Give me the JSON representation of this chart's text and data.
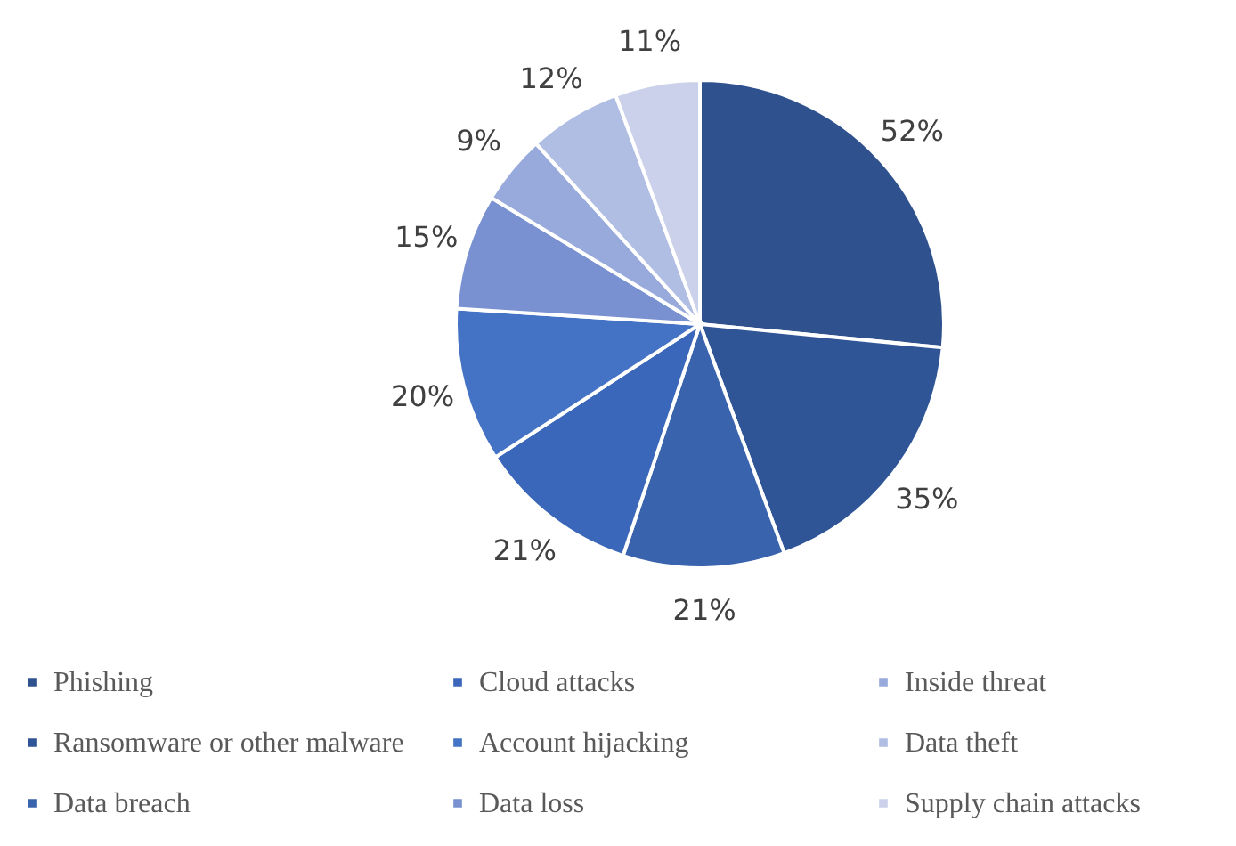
{
  "chart_data": {
    "type": "pie",
    "categories": [
      "Phishing",
      "Ransomware or other malware",
      "Data breach",
      "Cloud attacks",
      "Account hijacking",
      "Data loss",
      "Inside threat",
      "Data theft",
      "Supply chain attacks"
    ],
    "values": [
      52,
      35,
      21,
      21,
      20,
      15,
      9,
      12,
      11
    ],
    "value_labels": [
      "52%",
      "35%",
      "21%",
      "21%",
      "20%",
      "15%",
      "9%",
      "12%",
      "11%"
    ],
    "colors": [
      "#2f528f",
      "#2f5597",
      "#3a63ad",
      "#3a67ba",
      "#4472c4",
      "#7a91d1",
      "#98aadc",
      "#b1bee3",
      "#cbd1ea"
    ],
    "legend": "bottom"
  }
}
